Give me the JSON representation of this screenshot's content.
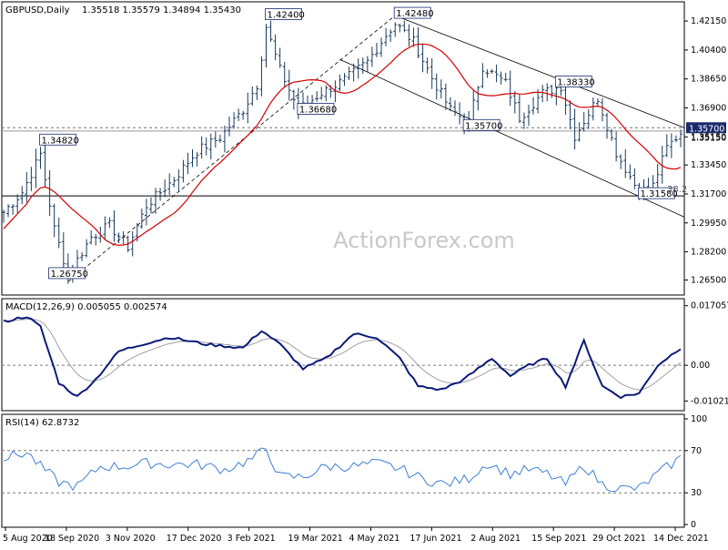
{
  "header": {
    "symbol": "GBPUSD,Daily",
    "ohlc": "1.35518 1.35579 1.34894 1.35430"
  },
  "watermark": "ActionForex.com",
  "colors": {
    "price_bar": "#1a3a5c",
    "sma": "#d40000",
    "macd": "#0b1a78",
    "signal": "#a0a0a0",
    "rsi": "#3d7fd6",
    "channel": "#000000",
    "grid_dash": "#777777"
  },
  "chart_data": [
    {
      "type": "ohlc",
      "title": "GBPUSD,Daily",
      "ylim": [
        1.257,
        1.432
      ],
      "y_ticks": [
        "1.42150",
        "1.40400",
        "1.38650",
        "1.36900",
        "1.35150",
        "1.33450",
        "1.31700",
        "1.29950",
        "1.28200",
        "1.26500"
      ],
      "x_ticks": [
        "5 Aug 2020",
        "18 Sep 2020",
        "3 Nov 2020",
        "17 Dec 2020",
        "3 Feb 2021",
        "19 Mar 2021",
        "4 May 2021",
        "17 Jun 2021",
        "2 Aug 2021",
        "15 Sep 2021",
        "29 Oct 2021",
        "14 Dec 2021"
      ],
      "current_price_label": "1.35700",
      "current_price_label_under": "1.35150",
      "level_lines": [
        1.357,
        1.355,
        1.3158
      ],
      "annotations": [
        {
          "text": "1.42400",
          "date_index": 57,
          "price": 1.424
        },
        {
          "text": "1.42480",
          "date_index": 85,
          "price": 1.4248
        },
        {
          "text": "1.36680",
          "date_index": 64,
          "price": 1.3668
        },
        {
          "text": "1.34820",
          "date_index": 8,
          "price": 1.3482
        },
        {
          "text": "1.26750",
          "date_index": 10,
          "price": 1.2675
        },
        {
          "text": "1.35700",
          "date_index": 100,
          "price": 1.357
        },
        {
          "text": "1.38330",
          "date_index": 120,
          "price": 1.3833
        },
        {
          "text": "1.31580",
          "date_index": 138,
          "price": 1.3158
        },
        {
          "text": "38.2",
          "date_index": 144,
          "price": 1.3185
        }
      ],
      "anchors": [
        [
          0,
          1.306
        ],
        [
          4,
          1.318
        ],
        [
          8,
          1.341
        ],
        [
          11,
          1.296
        ],
        [
          14,
          1.268
        ],
        [
          19,
          1.291
        ],
        [
          23,
          1.298
        ],
        [
          27,
          1.285
        ],
        [
          31,
          1.31
        ],
        [
          37,
          1.326
        ],
        [
          42,
          1.343
        ],
        [
          47,
          1.351
        ],
        [
          52,
          1.368
        ],
        [
          55,
          1.383
        ],
        [
          57,
          1.418
        ],
        [
          60,
          1.392
        ],
        [
          64,
          1.368
        ],
        [
          69,
          1.378
        ],
        [
          74,
          1.386
        ],
        [
          79,
          1.397
        ],
        [
          83,
          1.413
        ],
        [
          85,
          1.42
        ],
        [
          89,
          1.409
        ],
        [
          93,
          1.387
        ],
        [
          97,
          1.368
        ],
        [
          101,
          1.36
        ],
        [
          104,
          1.394
        ],
        [
          109,
          1.384
        ],
        [
          112,
          1.363
        ],
        [
          117,
          1.378
        ],
        [
          121,
          1.382
        ],
        [
          124,
          1.352
        ],
        [
          129,
          1.375
        ],
        [
          133,
          1.342
        ],
        [
          138,
          1.318
        ],
        [
          141,
          1.322
        ],
        [
          144,
          1.345
        ],
        [
          147,
          1.354
        ]
      ],
      "series": [
        {
          "name": "",
          "kind": "moving-average"
        }
      ]
    },
    {
      "type": "line",
      "title": "MACD(12,26,9) 0.005055 0.002574",
      "ylim": [
        -0.0122,
        0.0175
      ],
      "y_ticks": [
        "0.017057",
        "0.00",
        "-0.010219"
      ],
      "y_tick_values": [
        0.017057,
        0.0,
        -0.010219
      ],
      "current_values": [
        "0.00",
        "0.00"
      ],
      "macd_anchors": [
        [
          0,
          0.0125
        ],
        [
          5,
          0.014
        ],
        [
          8,
          0.011
        ],
        [
          12,
          -0.005
        ],
        [
          16,
          -0.009
        ],
        [
          20,
          -0.004
        ],
        [
          25,
          0.004
        ],
        [
          30,
          0.006
        ],
        [
          36,
          0.008
        ],
        [
          44,
          0.006
        ],
        [
          52,
          0.005
        ],
        [
          56,
          0.01
        ],
        [
          60,
          0.006
        ],
        [
          65,
          -0.001
        ],
        [
          70,
          0.002
        ],
        [
          76,
          0.009
        ],
        [
          81,
          0.008
        ],
        [
          86,
          0.002
        ],
        [
          90,
          -0.006
        ],
        [
          95,
          -0.007
        ],
        [
          100,
          -0.004
        ],
        [
          106,
          0.002
        ],
        [
          110,
          -0.003
        ],
        [
          114,
          0.0
        ],
        [
          118,
          0.002
        ],
        [
          122,
          -0.006
        ],
        [
          126,
          0.007
        ],
        [
          130,
          -0.006
        ],
        [
          134,
          -0.009
        ],
        [
          138,
          -0.008
        ],
        [
          142,
          0.0
        ],
        [
          147,
          0.005
        ]
      ]
    },
    {
      "type": "line",
      "title": "RSI(14) 62.8732",
      "ylim": [
        0,
        100
      ],
      "y_ticks": [
        "100",
        "70",
        "30",
        "0"
      ],
      "y_tick_values": [
        100,
        70,
        30,
        0
      ],
      "level_lines": [
        70,
        30
      ],
      "rsi_anchors": [
        [
          0,
          63
        ],
        [
          5,
          68
        ],
        [
          8,
          55
        ],
        [
          12,
          40
        ],
        [
          16,
          36
        ],
        [
          21,
          55
        ],
        [
          26,
          55
        ],
        [
          31,
          58
        ],
        [
          36,
          57
        ],
        [
          42,
          57
        ],
        [
          48,
          52
        ],
        [
          54,
          62
        ],
        [
          57,
          72
        ],
        [
          60,
          45
        ],
        [
          65,
          45
        ],
        [
          70,
          55
        ],
        [
          76,
          55
        ],
        [
          81,
          58
        ],
        [
          86,
          53
        ],
        [
          91,
          43
        ],
        [
          96,
          38
        ],
        [
          101,
          44
        ],
        [
          105,
          58
        ],
        [
          110,
          48
        ],
        [
          114,
          52
        ],
        [
          118,
          48
        ],
        [
          122,
          38
        ],
        [
          126,
          56
        ],
        [
          130,
          38
        ],
        [
          134,
          34
        ],
        [
          138,
          34
        ],
        [
          142,
          48
        ],
        [
          147,
          63
        ]
      ]
    }
  ]
}
